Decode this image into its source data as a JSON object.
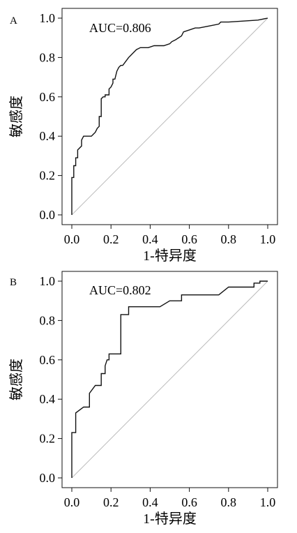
{
  "chart_data": [
    {
      "type": "line",
      "panel": "A",
      "annotation": "AUC=0.806",
      "xlabel": "1-特异度",
      "ylabel": "敏感度",
      "xlim": [
        0,
        1
      ],
      "ylim": [
        0,
        1
      ],
      "xticks": [
        "0.0",
        "0.2",
        "0.4",
        "0.6",
        "0.8",
        "1.0"
      ],
      "yticks": [
        "0.0",
        "0.2",
        "0.4",
        "0.6",
        "0.8",
        "1.0"
      ],
      "reference_line": "diagonal",
      "curve_color": "#111111",
      "reference_color": "#bbbbbb",
      "series": [
        {
          "x": [
            0.0,
            0.0,
            0.01,
            0.01,
            0.02,
            0.02,
            0.03,
            0.03,
            0.05,
            0.05,
            0.06,
            0.07,
            0.08,
            0.08,
            0.1,
            0.11,
            0.12,
            0.13,
            0.14,
            0.14,
            0.15,
            0.15,
            0.16,
            0.17,
            0.17,
            0.19,
            0.19,
            0.2,
            0.21,
            0.21,
            0.22,
            0.23,
            0.24,
            0.25,
            0.26,
            0.26,
            0.29,
            0.3,
            0.31,
            0.33,
            0.35,
            0.37,
            0.39,
            0.42,
            0.42,
            0.46,
            0.47,
            0.5,
            0.51,
            0.53,
            0.53,
            0.56,
            0.57,
            0.6,
            0.63,
            0.65,
            0.7,
            0.75,
            0.76,
            0.8,
            0.95,
            1.0
          ],
          "y": [
            0.0,
            0.19,
            0.19,
            0.25,
            0.25,
            0.29,
            0.29,
            0.33,
            0.35,
            0.38,
            0.4,
            0.4,
            0.4,
            0.4,
            0.4,
            0.41,
            0.42,
            0.44,
            0.45,
            0.5,
            0.5,
            0.59,
            0.6,
            0.6,
            0.61,
            0.61,
            0.64,
            0.65,
            0.67,
            0.69,
            0.69,
            0.73,
            0.75,
            0.76,
            0.76,
            0.76,
            0.8,
            0.81,
            0.82,
            0.84,
            0.85,
            0.85,
            0.85,
            0.86,
            0.86,
            0.86,
            0.86,
            0.87,
            0.88,
            0.89,
            0.89,
            0.91,
            0.93,
            0.94,
            0.95,
            0.95,
            0.96,
            0.97,
            0.98,
            0.98,
            0.99,
            1.0
          ]
        }
      ]
    },
    {
      "type": "line",
      "panel": "B",
      "annotation": "AUC=0.802",
      "xlabel": "1-特异度",
      "ylabel": "敏感度",
      "xlim": [
        0,
        1
      ],
      "ylim": [
        0,
        1
      ],
      "xticks": [
        "0.0",
        "0.2",
        "0.4",
        "0.6",
        "0.8",
        "1.0"
      ],
      "yticks": [
        "0.0",
        "0.2",
        "0.4",
        "0.6",
        "0.8",
        "1.0"
      ],
      "reference_line": "diagonal",
      "curve_color": "#111111",
      "reference_color": "#bbbbbb",
      "series": [
        {
          "x": [
            0.0,
            0.0,
            0.02,
            0.02,
            0.06,
            0.09,
            0.09,
            0.12,
            0.15,
            0.15,
            0.17,
            0.17,
            0.18,
            0.19,
            0.19,
            0.22,
            0.25,
            0.25,
            0.29,
            0.29,
            0.45,
            0.5,
            0.53,
            0.56,
            0.56,
            0.75,
            0.8,
            0.8,
            0.93,
            0.93,
            0.96,
            0.96,
            1.0
          ],
          "y": [
            0.0,
            0.23,
            0.23,
            0.33,
            0.36,
            0.36,
            0.43,
            0.47,
            0.47,
            0.53,
            0.53,
            0.57,
            0.6,
            0.6,
            0.63,
            0.63,
            0.63,
            0.83,
            0.83,
            0.87,
            0.87,
            0.9,
            0.9,
            0.9,
            0.93,
            0.93,
            0.97,
            0.97,
            0.97,
            0.99,
            0.99,
            1.0,
            1.0
          ]
        }
      ]
    }
  ]
}
